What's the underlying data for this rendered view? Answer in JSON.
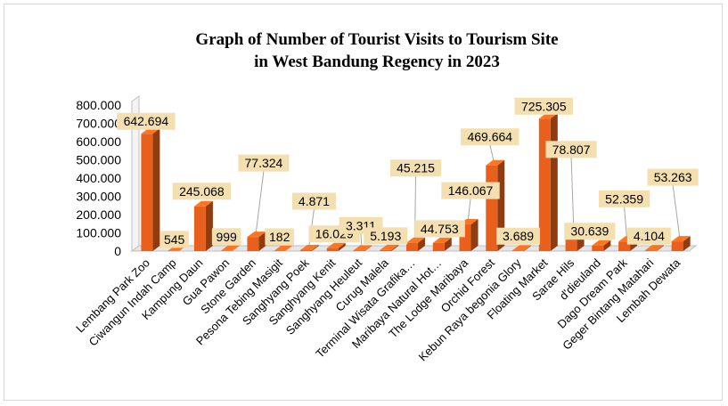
{
  "chart_data": {
    "type": "bar",
    "title_line1": "Graph of Number of Tourist Visits to Tourism Site",
    "title_line2": "in West Bandung Regency in 2023",
    "xlabel": "",
    "ylabel": "",
    "ylim": [
      0,
      800000
    ],
    "yticks": [
      "0",
      "100.000",
      "200.000",
      "300.000",
      "400.000",
      "500.000",
      "600.000",
      "700.000",
      "800.000"
    ],
    "grid": false,
    "bar_color": "#e8601c",
    "label_box_color": "#f3dfb0",
    "categories": [
      "Lembang Park Zoo",
      "Ciwangun Indah Camp",
      "Kampung Daun",
      "Gua Pawon",
      "Stone Garden",
      "Pesona Tebing Masigit",
      "Sanghyang Poek",
      "Sanghyang Kenit",
      "Sanghyang Heuleut",
      "Curug Malela",
      "Terminal Wisata Grafika…",
      "Maribaya Natural Hot…",
      "The Lodge Maribaya",
      "Orchid Forest",
      "Kebun Raya begonia Glory",
      "Floating Market",
      "Sarae Hils",
      "d'dieuland",
      "Dago Dream Park",
      "Geger Bintang Matahari",
      "Lembah Dewata"
    ],
    "values": [
      642694,
      545,
      245068,
      999,
      77324,
      182,
      4871,
      16029,
      3311,
      5193,
      45215,
      44753,
      146067,
      469664,
      3689,
      725305,
      78807,
      30639,
      52359,
      4104,
      53263
    ],
    "value_labels": [
      "642.694",
      "545",
      "245.068",
      "999",
      "77.324",
      "182",
      "4.871",
      "16.029",
      "3.311",
      "5.193",
      "45.215",
      "44.753",
      "146.067",
      "469.664",
      "3.689",
      "725.305",
      "78.807",
      "30.639",
      "52.359",
      "4.104",
      "53.263"
    ]
  }
}
